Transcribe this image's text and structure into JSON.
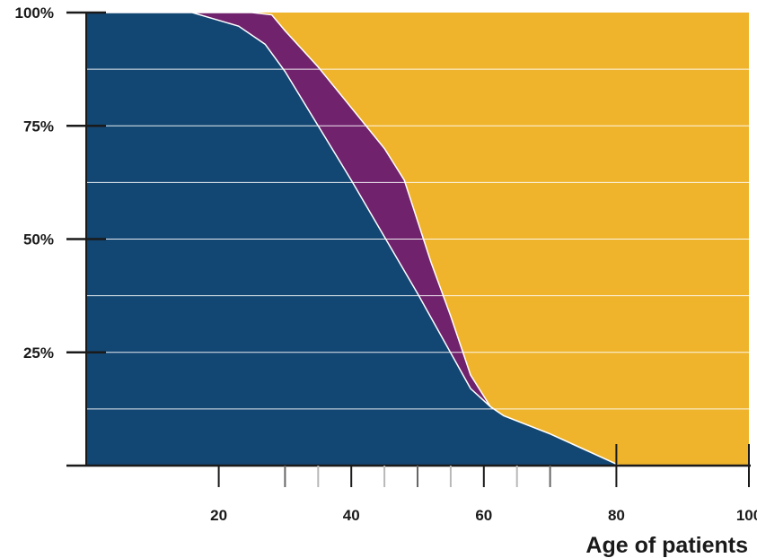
{
  "chart_data": {
    "type": "area",
    "stacked": true,
    "percent": true,
    "title": "",
    "xlabel": "Age of patients",
    "ylabel": "",
    "xlim": [
      0,
      100
    ],
    "ylim": [
      0,
      100
    ],
    "x_ticks": [
      20,
      40,
      60,
      80,
      100
    ],
    "x_tick_labels": [
      "20",
      "40",
      "60",
      "80",
      "100"
    ],
    "x_minor_ticks": [
      30,
      35,
      45,
      50,
      55,
      65,
      70
    ],
    "y_ticks": [
      25,
      50,
      75,
      100
    ],
    "y_tick_labels": [
      "25%",
      "50%",
      "75%",
      "100%"
    ],
    "grid": {
      "horizontal": true,
      "vertical": false,
      "step": 12.5
    },
    "legend": "none",
    "series": [
      {
        "color": "#124673",
        "x": [
          0,
          16,
          23,
          27,
          30,
          40,
          50,
          58,
          61,
          63,
          70,
          80.5,
          100
        ],
        "top": [
          100,
          100,
          97,
          93,
          87,
          63,
          38,
          17,
          13,
          11,
          7,
          0,
          0
        ]
      },
      {
        "color": "#70226d",
        "x": [
          0,
          16,
          17,
          25,
          28,
          30,
          35,
          40,
          45,
          48,
          52,
          55,
          58,
          61,
          63,
          70,
          80.5,
          100
        ],
        "top": [
          100,
          100,
          100,
          100,
          99.5,
          96,
          88,
          79,
          70,
          63,
          45,
          33,
          20,
          13,
          11,
          7,
          0,
          0
        ]
      },
      {
        "color": "#efb42c",
        "x": [
          0,
          100
        ],
        "top": [
          100,
          100
        ]
      }
    ]
  }
}
